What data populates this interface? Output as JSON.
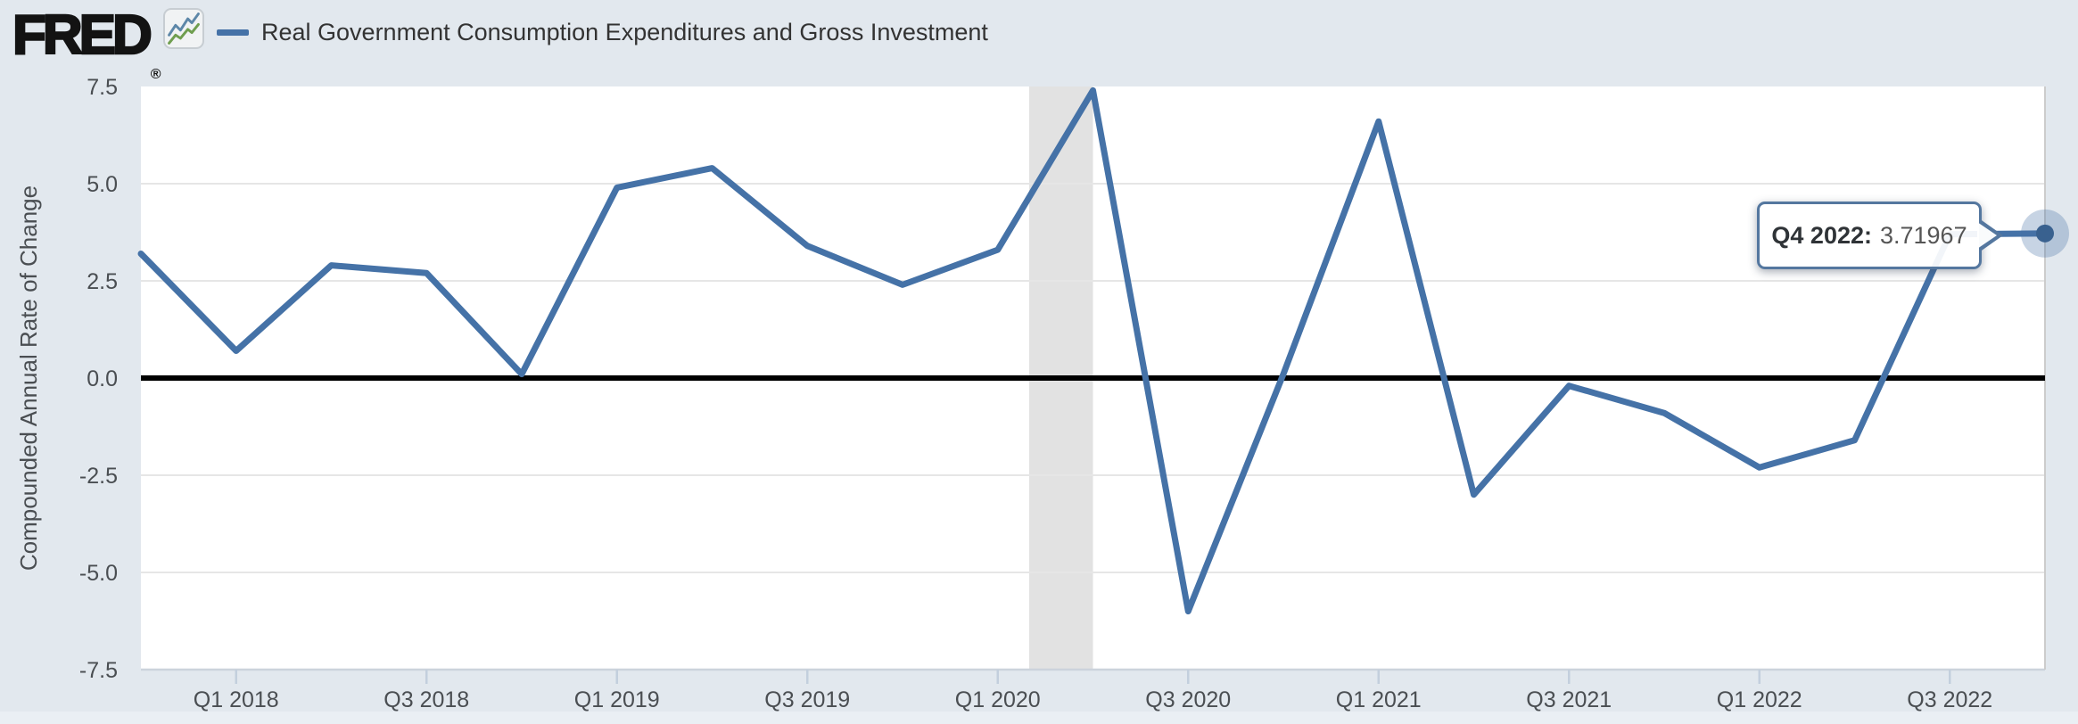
{
  "header": {
    "logo_text": "FRED",
    "logo_registered": "®",
    "series_title": "Real Government Consumption Expenditures and Gross Investment"
  },
  "y_axis": {
    "title": "Compounded Annual Rate of Change",
    "tick_labels": [
      "7.5",
      "5.0",
      "2.5",
      "0.0",
      "-2.5",
      "-5.0",
      "-7.5"
    ]
  },
  "x_axis": {
    "tick_labels": [
      "Q1 2018",
      "Q3 2018",
      "Q1 2019",
      "Q3 2019",
      "Q1 2020",
      "Q3 2020",
      "Q1 2021",
      "Q3 2021",
      "Q1 2022",
      "Q3 2022"
    ]
  },
  "tooltip": {
    "label": "Q4 2022:",
    "value": "3.71967"
  },
  "chart_data": {
    "type": "line",
    "x": [
      "Q4 2017",
      "Q1 2018",
      "Q2 2018",
      "Q3 2018",
      "Q4 2018",
      "Q1 2019",
      "Q2 2019",
      "Q3 2019",
      "Q4 2019",
      "Q1 2020",
      "Q2 2020",
      "Q3 2020",
      "Q4 2020",
      "Q1 2021",
      "Q2 2021",
      "Q3 2021",
      "Q4 2021",
      "Q1 2022",
      "Q2 2022",
      "Q3 2022",
      "Q4 2022"
    ],
    "values": [
      3.2,
      0.7,
      2.9,
      2.7,
      0.1,
      4.9,
      5.4,
      3.4,
      2.4,
      3.3,
      7.4,
      -6.0,
      0.1,
      6.6,
      -3.0,
      -0.2,
      -0.9,
      -2.3,
      -1.6,
      3.7,
      3.71967
    ],
    "title": "Real Government Consumption Expenditures and Gross Investment",
    "xlabel": "",
    "ylabel": "Compounded Annual Rate of Change",
    "ylim": [
      -7.5,
      7.5
    ],
    "y_ticks": [
      7.5,
      5.0,
      2.5,
      0.0,
      -2.5,
      -5.0,
      -7.5
    ],
    "x_tick_indices": [
      1,
      3,
      5,
      7,
      9,
      11,
      13,
      15,
      17,
      19
    ],
    "grid": true,
    "legend_position": "top-left",
    "recession_band": {
      "start_index": 9.33,
      "end_index": 10
    },
    "highlighted_point": {
      "x": "Q4 2022",
      "value": 3.71967
    },
    "colors": {
      "line": "#4572a7",
      "zero_line": "#000000",
      "gridline": "#e6e6e6",
      "recession_band": "#e2e2e2",
      "plot_background": "#ffffff",
      "page_background": "#e2e8ee",
      "axis_text": "#4a4e52",
      "tick_mark": "#c3cfdd",
      "axis_line": "#ccd3dc",
      "halo": "rgba(69,114,167,0.3)",
      "dot": "#39618f",
      "tooltip_border": "#54779f",
      "logo_icon_blue": "#5d87a8",
      "logo_icon_green": "#6f9e4f"
    }
  }
}
